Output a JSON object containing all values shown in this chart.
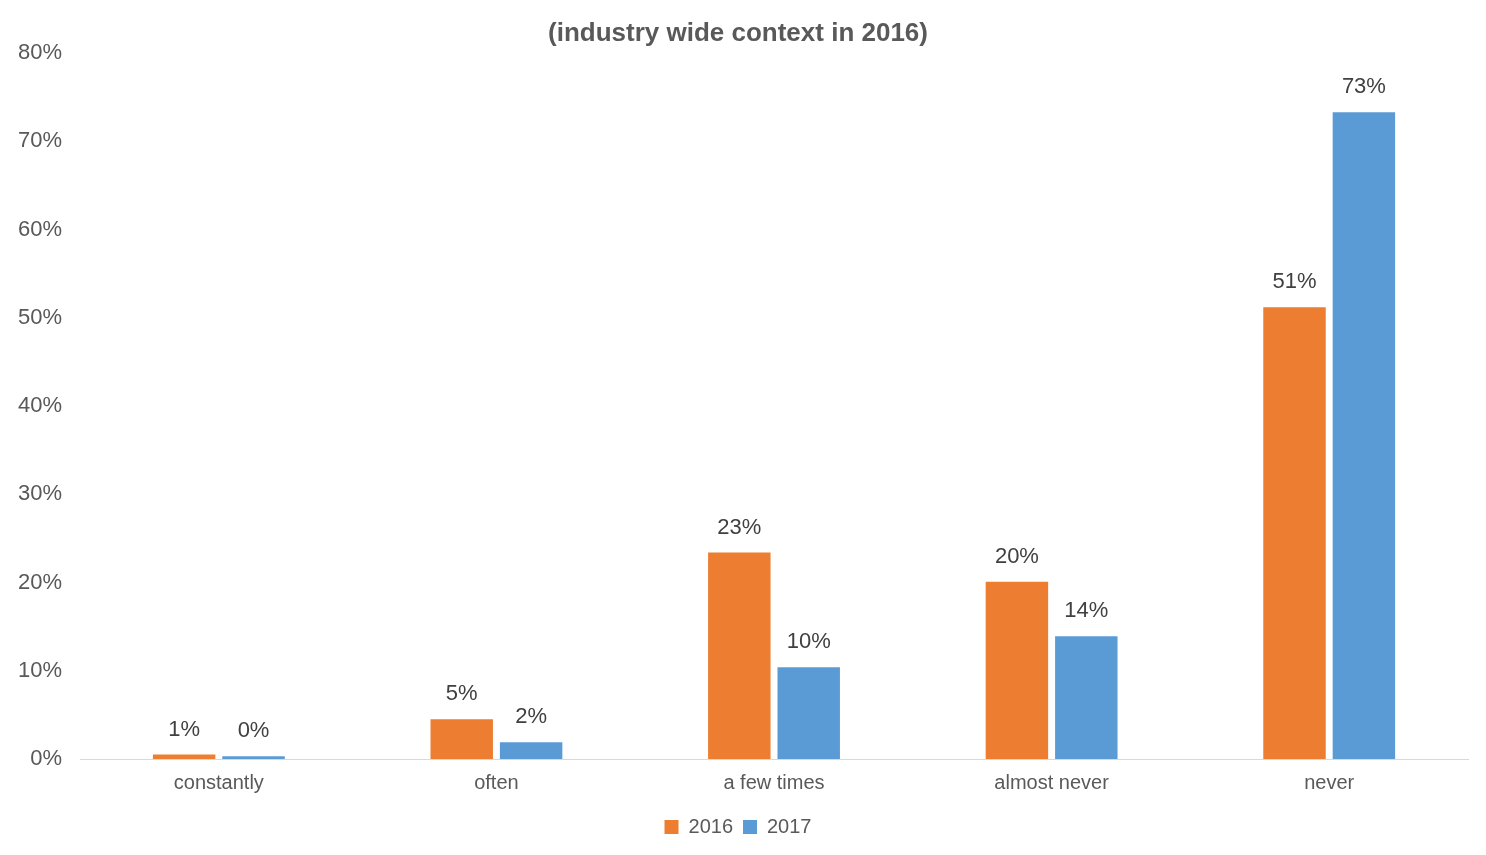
{
  "chart_data": {
    "type": "bar",
    "title": "(industry wide context in 2016)",
    "categories": [
      "constantly",
      "often",
      "a few times",
      "almost never",
      "never"
    ],
    "series": [
      {
        "name": "2016",
        "color": "#ed7d31",
        "values": [
          0.5,
          4.5,
          23.4,
          20.1,
          51.2
        ],
        "value_labels": [
          "1%",
          "5%",
          "23%",
          "20%",
          "51%"
        ]
      },
      {
        "name": "2017",
        "color": "#5b9bd5",
        "values": [
          0.3,
          1.9,
          10.4,
          13.9,
          73.3
        ],
        "value_labels": [
          "0%",
          "2%",
          "10%",
          "14%",
          "73%"
        ]
      }
    ],
    "ylim": [
      0,
      80
    ],
    "yticks": [
      {
        "value": 0,
        "label": "0%"
      },
      {
        "value": 10,
        "label": "10%"
      },
      {
        "value": 20,
        "label": "20%"
      },
      {
        "value": 30,
        "label": "30%"
      },
      {
        "value": 40,
        "label": "40%"
      },
      {
        "value": 50,
        "label": "50%"
      },
      {
        "value": 60,
        "label": "60%"
      },
      {
        "value": 70,
        "label": "70%"
      },
      {
        "value": 80,
        "label": "80%"
      }
    ],
    "grid": false,
    "legend": "bottom"
  }
}
